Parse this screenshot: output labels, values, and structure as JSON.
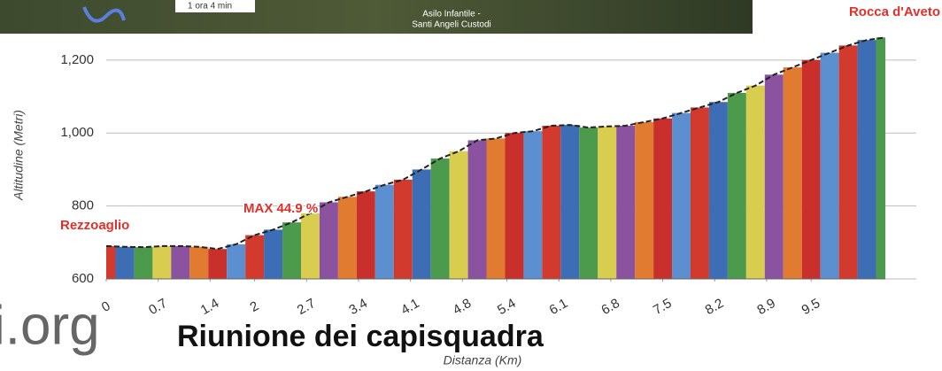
{
  "chart_data": {
    "type": "area",
    "x_label": "Distanza (Km)",
    "y_label": "Altitudine (Metri)",
    "x": [
      0,
      0.25,
      0.5,
      0.75,
      1,
      1.25,
      1.5,
      1.75,
      2,
      2.25,
      2.5,
      2.75,
      3,
      3.25,
      3.5,
      3.75,
      4,
      4.25,
      4.5,
      4.75,
      5,
      5.25,
      5.5,
      5.75,
      6,
      6.25,
      6.5,
      6.75,
      7,
      7.25,
      7.5,
      7.75,
      8,
      8.25,
      8.5,
      8.75,
      9,
      9.25,
      9.5,
      9.75,
      10,
      10.25,
      10.5
    ],
    "values": [
      690,
      688,
      687,
      690,
      690,
      688,
      682,
      695,
      720,
      735,
      755,
      780,
      810,
      825,
      840,
      858,
      872,
      900,
      930,
      950,
      980,
      985,
      1000,
      1005,
      1020,
      1022,
      1015,
      1018,
      1020,
      1030,
      1040,
      1055,
      1070,
      1085,
      1110,
      1130,
      1160,
      1180,
      1200,
      1220,
      1240,
      1255,
      1262
    ],
    "bar_colors": [
      "#d23a2e",
      "#3d6db5",
      "#4c9a4c",
      "#d8cd4e",
      "#8b52a0",
      "#e07b2f",
      "#c9302c",
      "#5b8fd0"
    ],
    "xlim": [
      0,
      10.5
    ],
    "ylim": [
      600,
      1270
    ],
    "xticks": [
      0,
      0.7,
      1.4,
      2,
      2.7,
      3.4,
      4.1,
      4.8,
      5.4,
      6.1,
      6.8,
      7.5,
      8.2,
      8.9,
      9.5
    ],
    "yticks": [
      600,
      800,
      {
        "value": 1000,
        "label": "1,000"
      },
      {
        "value": 1200,
        "label": "1,200"
      }
    ],
    "grid": true,
    "annotations": [
      "Rezzoaglio",
      "MAX 44.9 %",
      "Rocca d'Aveto"
    ]
  },
  "map": {
    "duration": "1 ora 4 min",
    "place_line1": "Asilo Infantile -",
    "place_line2": "Santi Angeli Custodi"
  },
  "logo": "i.org",
  "headline": "Riunione dei capisquadra"
}
